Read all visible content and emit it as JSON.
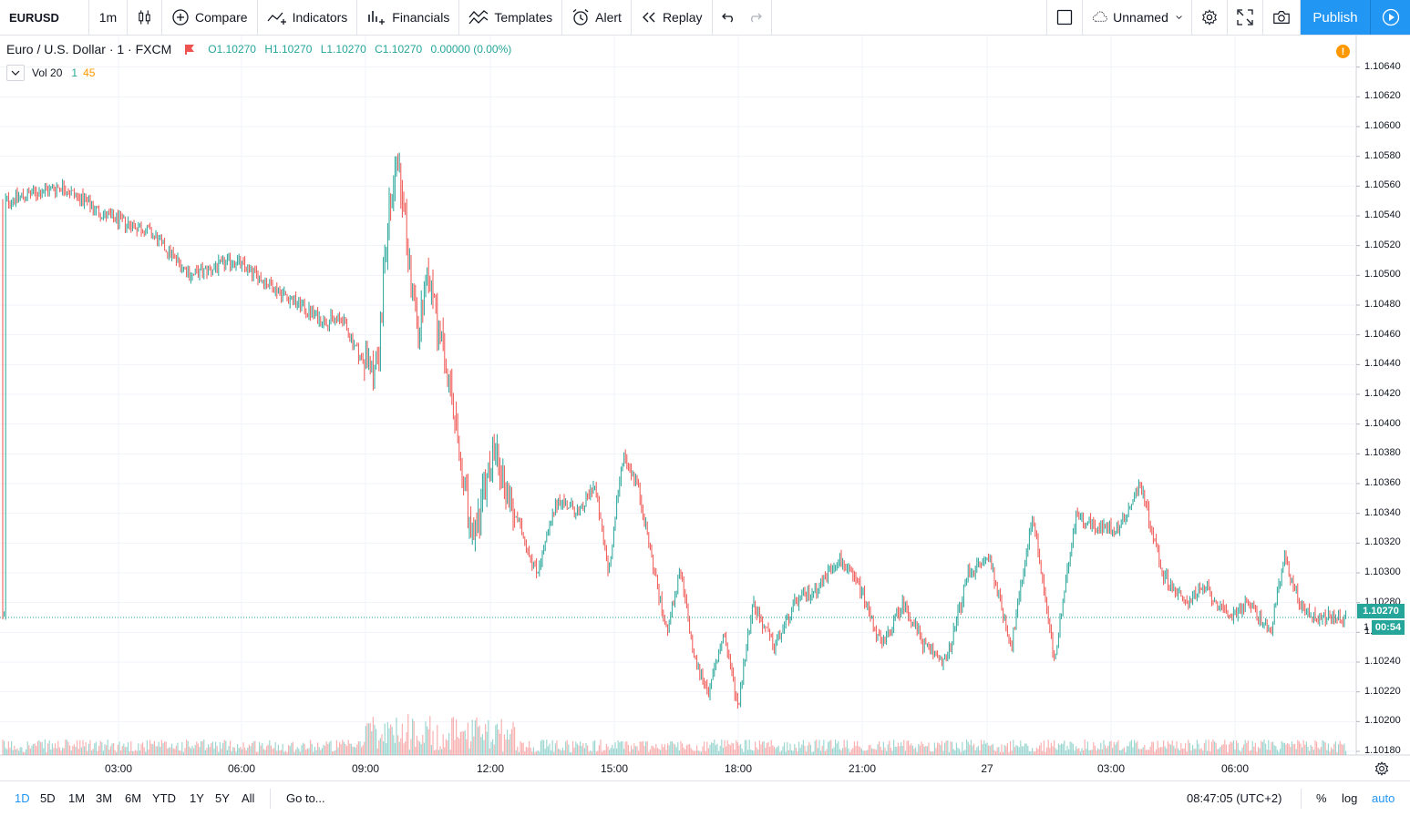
{
  "toolbar": {
    "symbol": "EURUSD",
    "interval": "1m",
    "compare": "Compare",
    "indicators": "Indicators",
    "financials": "Financials",
    "templates": "Templates",
    "alert": "Alert",
    "replay": "Replay",
    "layout_name": "Unnamed",
    "publish": "Publish"
  },
  "legend": {
    "title": "Euro / U.S. Dollar · 1 · FXCM",
    "open": "O1.10270",
    "high": "H1.10270",
    "low": "L1.10270",
    "close": "C1.10270",
    "change": "0.00000 (0.00%)",
    "volume_label": "Vol 20",
    "volume_value": "1",
    "volume_ma": "45"
  },
  "price_axis": {
    "labels": [
      "1.10640",
      "1.10620",
      "1.10600",
      "1.10580",
      "1.10560",
      "1.10540",
      "1.10520",
      "1.10500",
      "1.10480",
      "1.10460",
      "1.10440",
      "1.10420",
      "1.10400",
      "1.10380",
      "1.10360",
      "1.10340",
      "1.10320",
      "1.10300",
      "1.10280",
      "1.10260",
      "1.10240",
      "1.10220",
      "1.10200",
      "1.10180"
    ],
    "last_price": "1.10270",
    "countdown": "00:54",
    "countdown_stub": "1"
  },
  "time_axis": {
    "labels": [
      "03:00",
      "06:00",
      "09:00",
      "12:00",
      "15:00",
      "18:00",
      "21:00",
      "27",
      "03:00",
      "06:00"
    ]
  },
  "bottom_bar": {
    "ranges": [
      "1D",
      "5D",
      "1M",
      "3M",
      "6M",
      "YTD",
      "1Y",
      "5Y",
      "All"
    ],
    "active_range": "1D",
    "goto": "Go to...",
    "clock": "08:47:05 (UTC+2)",
    "percent": "%",
    "log": "log",
    "auto": "auto"
  },
  "colors": {
    "up": "#26a69a",
    "down": "#ef5350",
    "accent": "#2196f3",
    "grid": "#f0f3fa"
  },
  "chart_data": {
    "type": "candlestick",
    "symbol": "EURUSD",
    "interval": "1",
    "source": "FXCM",
    "ylim": [
      1.10175,
      1.10645
    ],
    "last_close": 1.1027,
    "x": [
      "01:40",
      "03:00",
      "04:00",
      "05:00",
      "06:00",
      "07:00",
      "08:00",
      "09:00",
      "09:30",
      "10:00",
      "10:20",
      "10:30",
      "10:45",
      "11:00",
      "11:15",
      "11:30",
      "11:45",
      "12:00",
      "12:30",
      "13:00",
      "13:30",
      "14:00",
      "14:30",
      "15:00",
      "15:20",
      "15:40",
      "16:00",
      "16:20",
      "16:40",
      "17:00",
      "17:20",
      "17:40",
      "18:00",
      "18:20",
      "18:40",
      "19:00",
      "19:30",
      "20:00",
      "20:30",
      "21:00",
      "21:30",
      "22:00",
      "22:30",
      "23:00",
      "23:30",
      "00:00",
      "00:30",
      "01:00",
      "01:30",
      "02:00",
      "02:30",
      "03:00",
      "03:30",
      "04:00",
      "04:30",
      "05:00",
      "05:30",
      "06:00",
      "06:30",
      "07:00",
      "07:20",
      "07:40",
      "08:00",
      "08:20",
      "08:47"
    ],
    "y": [
      1.1055,
      1.1056,
      1.1054,
      1.1053,
      1.105,
      1.1051,
      1.1049,
      1.1047,
      1.1047,
      1.1044,
      1.1044,
      1.1052,
      1.1058,
      1.1052,
      1.1046,
      1.105,
      1.1046,
      1.1042,
      1.1032,
      1.1038,
      1.1034,
      1.103,
      1.1035,
      1.1034,
      1.1036,
      1.103,
      1.1038,
      1.1036,
      1.1031,
      1.1026,
      1.103,
      1.1024,
      1.1022,
      1.1026,
      1.1021,
      1.1028,
      1.1025,
      1.1028,
      1.1029,
      1.1031,
      1.1029,
      1.1025,
      1.1028,
      1.1025,
      1.1024,
      1.103,
      1.1031,
      1.1025,
      1.1034,
      1.1024,
      1.1034,
      1.1033,
      1.1033,
      1.1036,
      1.103,
      1.1028,
      1.1029,
      1.1027,
      1.1028,
      1.1026,
      1.1031,
      1.1028,
      1.1027,
      1.1027,
      1.1027
    ]
  }
}
